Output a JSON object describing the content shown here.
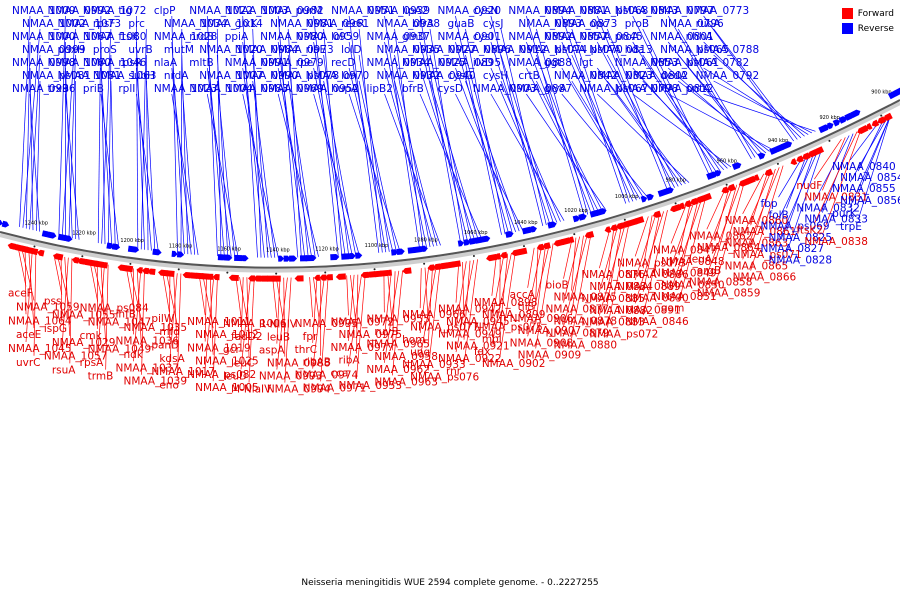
{
  "caption": "Neisseria meningitidis WUE 2594 complete genome. - 0..2227255",
  "legend": {
    "forward_label": "Forward",
    "reverse_label": "Reverse",
    "forward_color": "#ff0000",
    "reverse_color": "#0000ff"
  },
  "ticks": [
    "1240 kbp",
    "1220 kbp",
    "1200 kbp",
    "1180 kbp",
    "1160 kbp",
    "1140 kbp",
    "1120 kbp",
    "1100 kbp",
    "1080 kbp",
    "1060 kbp",
    "1040 kbp",
    "1020 kbp",
    "1000 kbp",
    "980 kbp",
    "960 kbp",
    "940 kbp",
    "920 kbp",
    "900 kbp"
  ],
  "top_labels": [
    "NMAA_1009",
    "NMAA_1002",
    "NMAA_1000",
    "NMAA_0999",
    "NMAA_0998",
    "NMAA_ps081",
    "NMAA_0996",
    "NMAA_0992",
    "NMAA_1073",
    "NMAA_1067",
    "pdxH",
    "NMAA_1060",
    "NMAA_1081",
    "trxB",
    "NMAA_1072",
    "rpsF",
    "NMAA_1080",
    "proS",
    "NMAA_1046",
    "NMAA_1063",
    "priB",
    "tig",
    "prc",
    "ftsK",
    "uvrB",
    "rpsR",
    "subH",
    "rplI",
    "clpP",
    "NMAA_1034",
    "NMAA_1028",
    "mutM",
    "nlaA",
    "nrdA",
    "NMAA_1023",
    "NMAA_1022",
    "NMAA_1014",
    "nrdB",
    "NMAA_1020",
    "mltB",
    "NMAA_1007",
    "NMAA_1004",
    "NMAA_1003",
    "glxK",
    "ppiA",
    "NMAA_0984",
    "NMAA_0991",
    "NMAA_0990",
    "NMAA_0983",
    "NMAA_0982",
    "NMAA_0981",
    "NMAA_0980",
    "NMAA_0973",
    "NMAA_0979",
    "NMAA_ps078",
    "NMAA_0969",
    "purM",
    "NMAA_0961",
    "NMAA_0959",
    "ribE",
    "rpe",
    "NMAA_0970",
    "NMAA_0952",
    "NMAA_0951",
    "recR",
    "lolC",
    "lolD",
    "recD",
    "lon",
    "hupA",
    "NMAA_0939",
    "NMAA_0938",
    "NMAA_0937",
    "NMAA_0935",
    "NMAA_0934",
    "NMAA_0932",
    "lipB2",
    "lipA2",
    "bfrA",
    "glnD",
    "NMAA_0927",
    "NMAA_0925",
    "NMAA_0940",
    "bfrB",
    "NMAA_0920",
    "guaB",
    "NMAA_0901",
    "NMAA_0896",
    "NMAA_0895",
    "cysG",
    "cysD",
    "cysN",
    "cysJ",
    "cysI",
    "NMAA_0912",
    "ilvD",
    "cysH",
    "NMAA_0903",
    "NMAA_0894",
    "NMAA_0893",
    "NMAA_0892",
    "NMAA_ps074",
    "NMAA_0888",
    "crtB",
    "NMAA_0887",
    "NMAA_0881",
    "NMAA_0873",
    "NMAA_0857",
    "NMAA_ps070",
    "ggt",
    "NMAA_0842",
    "glyA",
    "NMAA_ps068",
    "opc",
    "NMAA_0845",
    "NMAA_0813",
    "lgt",
    "NMAA_0823",
    "NMAA_ps067",
    "NMAA_0843",
    "proB",
    "proA",
    "hda",
    "NMAA_0853",
    "NMAA_0802",
    "NMAA_0798",
    "NMAA_0797",
    "NMAA_0796",
    "NMAA_0801",
    "NMAA_ps065",
    "NMAA_ps061",
    "dedA",
    "NMAA_0812",
    "NMAA_0773",
    "rubA",
    "nhhA",
    "NMAA_0788",
    "NMAA_0782",
    "NMAA_0792",
    "pntA"
  ],
  "bottom_labels": [
    "aceF",
    "NMAA_1059",
    "NMAA_1064",
    "aceE",
    "NMAA_1045",
    "uvrC",
    "pss",
    "NMAA_1055",
    "ispG",
    "NMAA_1029",
    "NMAA_1057",
    "rsuA",
    "NMAA_ps084",
    "NMAA_1047",
    "cmk",
    "NMAA_1049",
    "rpsA",
    "trmB",
    "ihfB",
    "NMAA_1035",
    "NMAA_1036",
    "ndk",
    "NMAA_1037",
    "NMAA_1039",
    "pilW",
    "mfd",
    "panD",
    "kdsA",
    "NMAA_1017",
    "eno",
    "NMAA_1011",
    "NMAA_1012",
    "NMAA_1019",
    "NMAA_1025",
    "NMAA_ps082",
    "NMAA_1005",
    "NMAA_1006",
    "fadD2",
    "gcr",
    "leuC",
    "leuD",
    "M-NlaIV",
    "R-NlaIV",
    "leuB",
    "aspA",
    "NMAA_0988",
    "NMAA_0993",
    "NMAA_0994",
    "NMAA_0995",
    "fpr",
    "thrC",
    "ribAB",
    "NMAA_0974",
    "NMAA_0971",
    "NMAA_0972",
    "NMAA_0975",
    "NMAA_0977",
    "ribA",
    "cca",
    "NMAA_0953",
    "NMAA_0955",
    "ruvB",
    "NMAA_0965",
    "NMAA_0958",
    "NMAA_0962",
    "NMAA_0963",
    "NMAA_0966",
    "NMAA_ps077",
    "hom",
    "ung",
    "NMAA_0933",
    "NMAA_ps076",
    "NMAA_0942",
    "NMAA_0945",
    "NMAA_0949",
    "NMAA_0921",
    "NMAA_0922",
    "rnr",
    "NMAA_0898",
    "NMAA_0899",
    "NMAA_ps075",
    "mpl",
    "fdx",
    "NMAA_0902",
    "accA",
    "tilS",
    "NMAA_0906",
    "NMAA_0907",
    "NMAA_0908",
    "NMAA_0909",
    "bioB",
    "NMAA_0875",
    "NMAA_0877",
    "NMAA_0878",
    "NMAA_0879",
    "NMAA_0880",
    "NMAA_0876",
    "NMAA_0884",
    "NMAA_0885",
    "NMAA_0882",
    "NMAA_0883",
    "NMAA_ps072",
    "NMAA_ps073",
    "NMAA_0886",
    "NMAA_0889",
    "NMAA_0890",
    "NMAA_0891",
    "NMAA_0846",
    "NMAA_0847",
    "NMAA_0848",
    "NMAA_0849",
    "NMAA_0850",
    "NMAA_0851",
    "gam",
    "NMAA_0862",
    "NMAA_0864",
    "leuA",
    "argB",
    "NMAA_0858",
    "NMAA_0859",
    "NMAA_0860",
    "NMAA_0861",
    "NMAA_0863",
    "NMAA_ps071",
    "NMAA_0865",
    "NMAA_0866",
    "fbp",
    "folB",
    "NMAA_ps069",
    "NMAA_0825",
    "NMAA_0827",
    "NMAA_0828",
    "nudF",
    "NMAA_0831",
    "NMAA_0832",
    "NMAA_0833",
    "ftsK2",
    "NMAA_0838",
    "NMAA_0840",
    "NMAA_0854",
    "NMAA_0855",
    "NMAA_0856",
    "purK",
    "trpE"
  ],
  "bottom_blue_labels": [
    "NMAA_0854",
    "NMAA_0855",
    "NMAA_0856",
    "purK",
    "trpE",
    "fbp",
    "folB",
    "NMAA_ps069",
    "NMAA_0825",
    "NMAA_0827",
    "NMAA_0828",
    "NMAA_0832",
    "NMAA_0833",
    "NMAA_0840"
  ]
}
